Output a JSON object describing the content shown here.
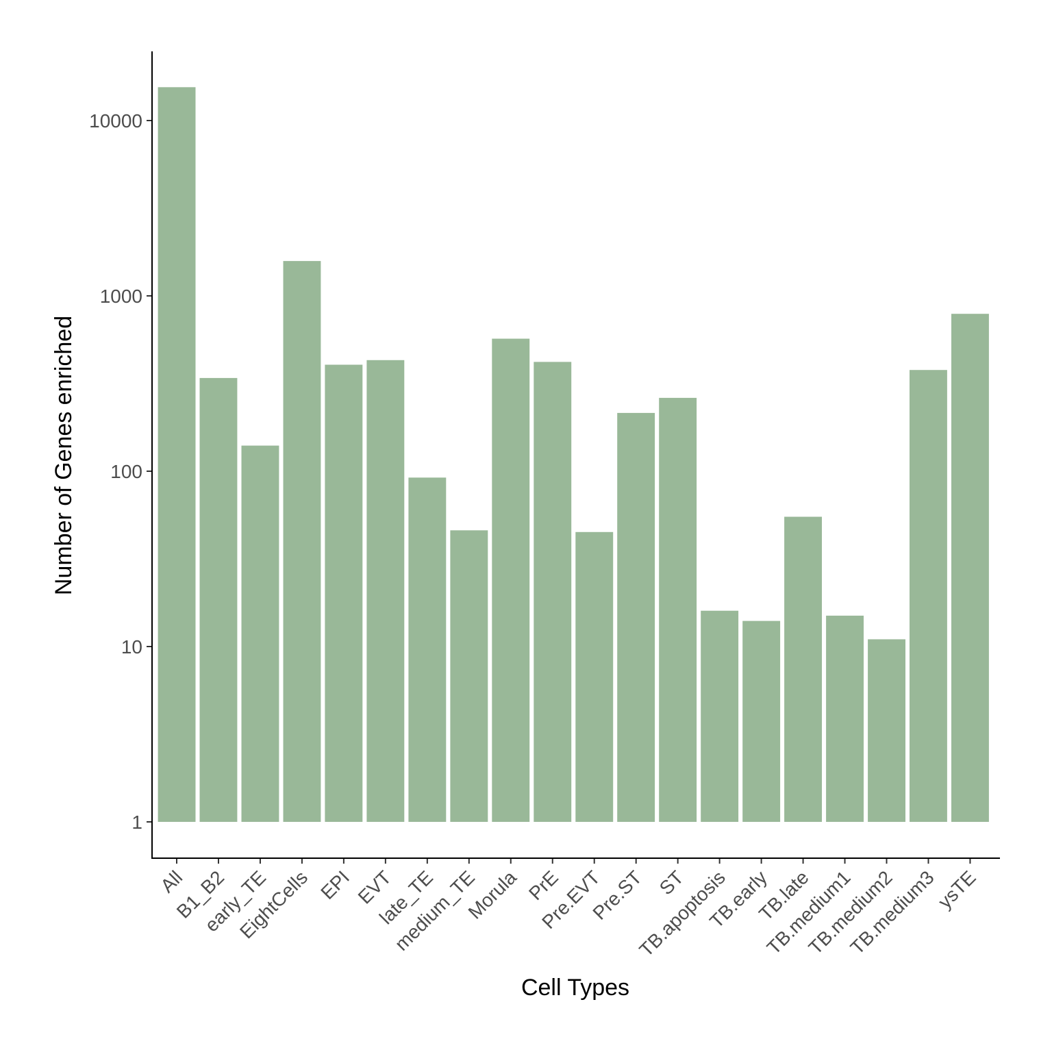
{
  "chart_data": {
    "type": "bar",
    "title": "",
    "xlabel": "Cell Types",
    "ylabel": "Number of Genes enriched",
    "yscale": "log10",
    "ylim": [
      1,
      25000
    ],
    "yticks": [
      1,
      10,
      100,
      1000,
      10000
    ],
    "ytick_labels": [
      "1",
      "10",
      "100",
      "1000",
      "10000"
    ],
    "grid": false,
    "legend": "none",
    "bar_color": "#99b898",
    "categories": [
      "All",
      "B1_B2",
      "early_TE",
      "EightCells",
      "EPI",
      "EVT",
      "late_TE",
      "medium_TE",
      "Morula",
      "PrE",
      "Pre.EVT",
      "Pre.ST",
      "ST",
      "TB.apoptosis",
      "TB.early",
      "TB.late",
      "TB.medium1",
      "TB.medium2",
      "TB.medium3",
      "ysTE"
    ],
    "values": [
      15500,
      340,
      140,
      1580,
      405,
      430,
      92,
      46,
      570,
      420,
      45,
      215,
      262,
      16,
      14,
      55,
      15,
      11,
      378,
      790
    ]
  }
}
